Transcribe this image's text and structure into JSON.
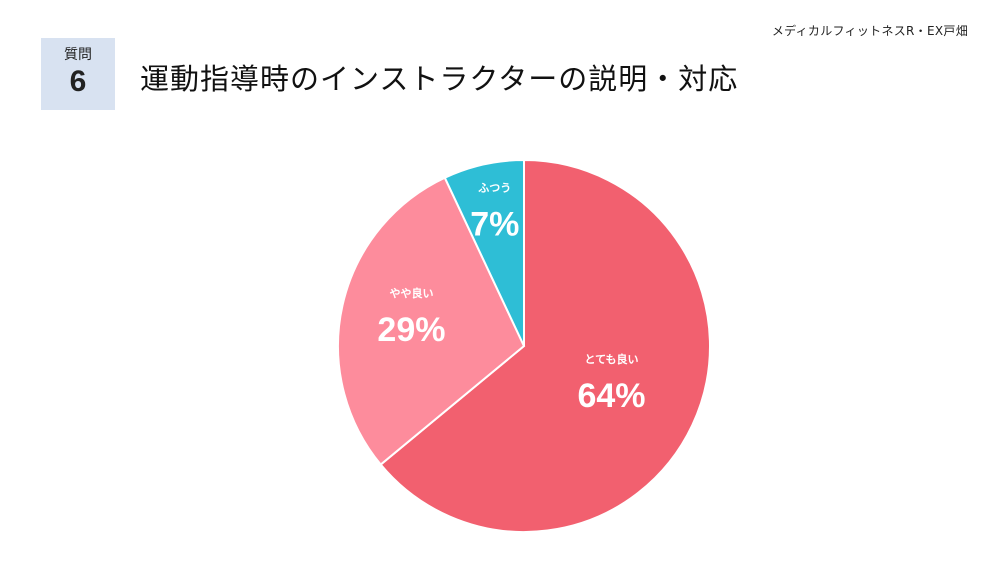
{
  "source_label": "メディカルフィットネスR・EX戸畑",
  "question": {
    "label": "質問",
    "number": "6"
  },
  "title": "運動指導時のインストラクターの説明・対応",
  "chart_data": {
    "type": "pie",
    "title": "運動指導時のインストラクターの説明・対応",
    "slices": [
      {
        "label": "とても良い",
        "value": 64,
        "display": "64%",
        "color": "#f2606f"
      },
      {
        "label": "やや良い",
        "value": 29,
        "display": "29%",
        "color": "#fd8c9c"
      },
      {
        "label": "ふつう",
        "value": 7,
        "display": "7%",
        "color": "#2ebed6"
      }
    ],
    "start": "top",
    "direction": "clockwise"
  }
}
